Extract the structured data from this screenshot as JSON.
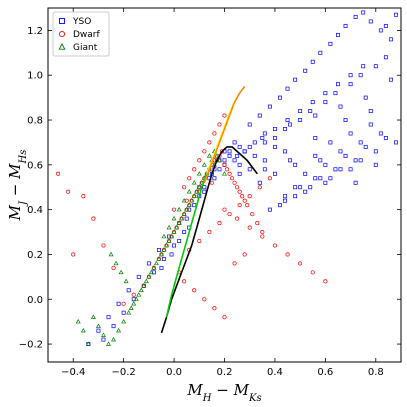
{
  "chart_data": {
    "type": "scatter",
    "xlabel": "M_H − M_Ks",
    "ylabel": "M_J − M_Hs",
    "xlim": [
      -0.5,
      0.9
    ],
    "ylim": [
      -0.28,
      1.3
    ],
    "x_ticks": [
      -0.4,
      -0.2,
      0.0,
      0.2,
      0.4,
      0.6,
      0.8
    ],
    "x_tick_labels": [
      "−0.4",
      "−0.2",
      "0.0",
      "0.2",
      "0.4",
      "0.6",
      "0.8"
    ],
    "y_ticks": [
      -0.2,
      0.0,
      0.2,
      0.4,
      0.6,
      0.8,
      1.0,
      1.2
    ],
    "y_tick_labels": [
      "−0.2",
      "0.0",
      "0.2",
      "0.4",
      "0.6",
      "0.8",
      "1.0",
      "1.2"
    ],
    "legend_position": "top-left",
    "grid": false,
    "series": [
      {
        "name": "YSO",
        "marker": "square",
        "color": "#0000ff",
        "x": [
          0.3,
          0.34,
          0.38,
          0.42,
          0.45,
          0.48,
          0.52,
          0.55,
          0.58,
          0.62,
          0.65,
          0.68,
          0.72,
          0.75,
          0.78,
          0.82,
          0.86,
          0.88,
          0.4,
          0.44,
          0.5,
          0.54,
          0.6,
          0.64,
          0.7,
          0.74,
          0.8,
          0.84,
          0.28,
          0.32,
          0.36,
          0.46,
          0.56,
          0.66,
          0.76,
          0.62,
          0.7,
          0.78,
          0.58,
          0.66,
          0.74,
          0.82,
          0.52,
          0.6,
          0.68,
          0.76,
          0.84,
          0.48,
          0.56,
          0.64,
          0.72,
          0.8,
          0.88,
          0.44,
          0.5,
          0.58,
          0.66,
          0.74,
          0.42,
          0.48,
          0.54,
          0.62,
          0.7,
          0.38,
          0.44,
          0.52,
          0.6,
          0.34,
          0.4,
          0.48,
          0.56,
          0.3,
          0.36,
          0.44,
          0.26,
          0.32,
          0.4,
          0.24,
          0.28,
          0.36,
          0.22,
          0.26,
          0.2,
          0.24,
          0.18,
          0.22,
          0.16,
          0.2,
          0.14,
          0.18,
          0.12,
          0.16,
          0.1,
          0.06,
          0.02,
          -0.02,
          -0.06,
          -0.1,
          -0.14,
          -0.18,
          -0.22,
          -0.26,
          -0.3,
          -0.34,
          0.04,
          0.0,
          -0.04,
          -0.08,
          -0.12,
          -0.16,
          -0.2,
          -0.24,
          -0.28,
          0.08,
          0.12,
          0.05,
          -0.01,
          -0.05,
          0.1,
          0.15,
          0.2,
          0.25,
          0.3,
          0.35,
          0.4,
          0.45,
          0.5,
          0.55,
          0.6,
          0.65,
          0.7,
          0.75,
          0.72,
          0.8,
          0.84,
          0.86,
          0.78,
          0.68,
          0.56,
          0.46,
          0.36,
          0.26,
          0.06,
          0.02
        ],
        "y": [
          0.78,
          0.82,
          0.86,
          0.9,
          0.94,
          0.98,
          1.02,
          1.06,
          1.1,
          1.14,
          1.18,
          1.22,
          1.26,
          1.28,
          1.24,
          1.2,
          1.16,
          1.27,
          0.72,
          0.76,
          0.8,
          0.84,
          0.88,
          0.92,
          0.96,
          1.0,
          1.04,
          1.08,
          0.66,
          0.7,
          0.74,
          0.78,
          0.82,
          0.86,
          0.9,
          0.7,
          0.74,
          0.78,
          0.62,
          0.66,
          0.7,
          0.74,
          0.56,
          0.6,
          0.64,
          0.68,
          0.72,
          0.5,
          0.54,
          0.58,
          0.62,
          0.66,
          0.7,
          0.46,
          0.5,
          0.54,
          0.58,
          0.62,
          0.42,
          0.46,
          0.5,
          0.54,
          0.58,
          0.4,
          0.44,
          0.48,
          0.52,
          0.52,
          0.56,
          0.6,
          0.64,
          0.58,
          0.62,
          0.66,
          0.6,
          0.64,
          0.68,
          0.62,
          0.66,
          0.7,
          0.64,
          0.68,
          0.66,
          0.7,
          0.62,
          0.66,
          0.58,
          0.62,
          0.54,
          0.58,
          0.5,
          0.54,
          0.46,
          0.4,
          0.34,
          0.28,
          0.22,
          0.16,
          0.1,
          0.04,
          -0.02,
          -0.08,
          -0.14,
          -0.2,
          0.3,
          0.24,
          0.18,
          0.12,
          0.06,
          0.0,
          -0.06,
          -0.12,
          -0.18,
          0.42,
          0.48,
          0.36,
          0.2,
          0.14,
          0.5,
          0.56,
          0.6,
          0.64,
          0.68,
          0.72,
          0.76,
          0.8,
          0.84,
          0.88,
          0.92,
          0.96,
          1.0,
          1.04,
          0.52,
          0.6,
          1.22,
          0.98,
          0.84,
          0.8,
          0.72,
          0.62,
          0.58,
          0.56,
          0.32,
          0.26
        ]
      },
      {
        "name": "Dwarf",
        "marker": "circle",
        "color": "#ff0000",
        "x": [
          0.0,
          0.02,
          0.04,
          0.06,
          0.08,
          0.1,
          0.12,
          0.14,
          0.16,
          0.18,
          0.2,
          0.22,
          0.24,
          0.26,
          0.28,
          -0.02,
          -0.04,
          -0.06,
          -0.08,
          -0.1,
          0.01,
          0.03,
          0.05,
          0.07,
          0.09,
          0.11,
          0.13,
          0.15,
          0.17,
          0.19,
          0.21,
          0.23,
          0.25,
          0.27,
          0.29,
          0.31,
          0.33,
          0.35,
          -0.12,
          -0.16,
          -0.2,
          -0.24,
          -0.28,
          -0.32,
          -0.36,
          -0.4,
          -0.46,
          -0.42,
          0.06,
          0.1,
          0.14,
          0.18,
          0.22,
          0.26,
          0.3,
          0.34,
          0.38,
          0.02,
          0.04,
          0.08,
          0.12,
          0.16,
          0.2,
          0.24,
          0.28,
          -0.01,
          -0.03,
          -0.05,
          0.0,
          0.05,
          0.1,
          0.15,
          0.2,
          0.25,
          0.3,
          0.35,
          0.4,
          0.45,
          0.5,
          0.55,
          0.6,
          0.2,
          0.18,
          0.16,
          0.14,
          0.12,
          0.1,
          0.08,
          0.06,
          0.04
        ],
        "y": [
          0.3,
          0.34,
          0.38,
          0.42,
          0.46,
          0.5,
          0.54,
          0.58,
          0.62,
          0.64,
          0.6,
          0.56,
          0.52,
          0.48,
          0.44,
          0.26,
          0.22,
          0.18,
          0.14,
          0.1,
          0.32,
          0.36,
          0.4,
          0.44,
          0.48,
          0.52,
          0.56,
          0.6,
          0.62,
          0.66,
          0.58,
          0.54,
          0.5,
          0.46,
          0.42,
          0.38,
          0.34,
          0.3,
          0.06,
          0.02,
          -0.02,
          0.14,
          0.24,
          0.36,
          0.46,
          0.2,
          0.56,
          0.48,
          0.22,
          0.26,
          0.3,
          0.34,
          0.38,
          0.42,
          0.46,
          0.5,
          0.54,
          0.12,
          0.08,
          0.04,
          0.0,
          -0.04,
          -0.08,
          0.16,
          0.2,
          0.28,
          0.24,
          0.2,
          0.4,
          0.44,
          0.48,
          0.52,
          0.4,
          0.36,
          0.32,
          0.28,
          0.24,
          0.2,
          0.16,
          0.12,
          0.08,
          0.82,
          0.78,
          0.74,
          0.7,
          0.66,
          0.62,
          0.58,
          0.54,
          0.5
        ]
      },
      {
        "name": "Giant",
        "marker": "triangle",
        "color": "#008000",
        "x": [
          0.0,
          0.02,
          0.04,
          0.06,
          0.08,
          0.1,
          0.12,
          0.14,
          0.16,
          0.18,
          0.2,
          -0.02,
          -0.04,
          -0.06,
          -0.08,
          -0.1,
          -0.12,
          -0.14,
          -0.16,
          -0.18,
          -0.2,
          -0.22,
          -0.24,
          -0.26,
          -0.28,
          -0.3,
          -0.32,
          -0.34,
          -0.36,
          -0.38,
          0.01,
          0.03,
          0.05,
          0.07,
          0.09,
          0.11,
          0.13,
          0.15,
          0.17,
          -0.01,
          -0.03,
          -0.05,
          -0.07,
          -0.09,
          -0.11,
          -0.13,
          -0.15,
          -0.17,
          -0.19,
          -0.21,
          -0.23,
          -0.25,
          0.04,
          0.06,
          0.08,
          0.1,
          0.12,
          0.14,
          0.16,
          0.02,
          0.0,
          -0.02,
          -0.04
        ],
        "y": [
          0.3,
          0.34,
          0.38,
          0.42,
          0.46,
          0.5,
          0.54,
          0.58,
          0.6,
          0.62,
          0.56,
          0.26,
          0.22,
          0.18,
          0.14,
          0.1,
          0.06,
          0.02,
          -0.02,
          -0.06,
          -0.1,
          -0.14,
          -0.18,
          -0.2,
          -0.16,
          -0.12,
          -0.08,
          -0.2,
          -0.14,
          -0.1,
          0.32,
          0.36,
          0.4,
          0.44,
          0.48,
          0.52,
          0.56,
          0.62,
          0.64,
          0.28,
          0.24,
          0.2,
          0.16,
          0.12,
          0.08,
          0.04,
          0.0,
          -0.04,
          0.08,
          0.12,
          0.16,
          0.2,
          0.44,
          0.48,
          0.52,
          0.56,
          0.6,
          0.64,
          0.66,
          0.4,
          0.36,
          0.32,
          0.28
        ]
      }
    ],
    "curves": [
      {
        "color": "#000000",
        "x": [
          -0.05,
          -0.03,
          -0.01,
          0.01,
          0.03,
          0.05,
          0.07,
          0.09,
          0.11,
          0.13,
          0.15,
          0.17,
          0.19,
          0.21,
          0.23,
          0.25,
          0.27,
          0.29,
          0.31,
          0.33
        ],
        "y": [
          -0.15,
          -0.08,
          0.0,
          0.06,
          0.12,
          0.18,
          0.24,
          0.32,
          0.4,
          0.48,
          0.56,
          0.62,
          0.66,
          0.68,
          0.68,
          0.66,
          0.64,
          0.62,
          0.59,
          0.56
        ]
      },
      {
        "color": "#00cc00",
        "x": [
          -0.03,
          -0.01,
          0.01,
          0.03,
          0.05,
          0.07,
          0.09,
          0.11,
          0.13
        ],
        "y": [
          -0.08,
          0.02,
          0.1,
          0.18,
          0.26,
          0.34,
          0.42,
          0.5,
          0.56
        ]
      },
      {
        "color": "#ffff00",
        "x": [
          0.13,
          0.15,
          0.17,
          0.19,
          0.21,
          0.23,
          0.25
        ],
        "y": [
          0.56,
          0.62,
          0.68,
          0.74,
          0.8,
          0.86,
          0.9
        ]
      },
      {
        "color": "#ff8800",
        "x": [
          0.12,
          0.14,
          0.16,
          0.18,
          0.2,
          0.22,
          0.24,
          0.26,
          0.28
        ],
        "y": [
          0.52,
          0.58,
          0.64,
          0.7,
          0.76,
          0.82,
          0.88,
          0.92,
          0.95
        ]
      }
    ]
  }
}
